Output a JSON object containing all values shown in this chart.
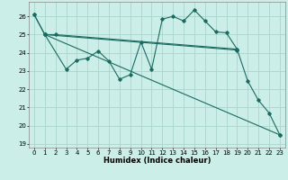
{
  "xlabel": "Humidex (Indice chaleur)",
  "bg_color": "#cceee8",
  "grid_color": "#aad4cc",
  "line_color": "#1a6b60",
  "xlim": [
    -0.5,
    23.5
  ],
  "ylim": [
    18.8,
    26.8
  ],
  "yticks": [
    19,
    20,
    21,
    22,
    23,
    24,
    25,
    26
  ],
  "xticks": [
    0,
    1,
    2,
    3,
    4,
    5,
    6,
    7,
    8,
    9,
    10,
    11,
    12,
    13,
    14,
    15,
    16,
    17,
    18,
    19,
    20,
    21,
    22,
    23
  ],
  "line1_x": [
    0,
    1,
    2,
    19
  ],
  "line1_y": [
    26.1,
    25.0,
    25.0,
    24.2
  ],
  "line2_x": [
    1,
    19
  ],
  "line2_y": [
    25.0,
    24.15
  ],
  "line3_x": [
    0,
    1,
    3,
    4,
    5,
    6,
    7,
    8,
    9,
    10,
    11,
    12,
    13,
    14,
    15,
    16,
    17,
    18,
    19,
    20,
    21,
    22,
    23
  ],
  "line3_y": [
    26.1,
    25.0,
    23.1,
    23.6,
    23.7,
    24.1,
    23.55,
    22.55,
    22.8,
    24.6,
    23.1,
    25.85,
    26.0,
    25.75,
    26.35,
    25.75,
    25.15,
    25.1,
    24.2,
    22.45,
    21.4,
    20.7,
    19.5
  ],
  "line4_x": [
    1,
    23
  ],
  "line4_y": [
    25.0,
    19.5
  ],
  "marker": "D",
  "marker_size": 1.8,
  "linewidth": 0.8,
  "tick_fontsize": 5.0,
  "xlabel_fontsize": 6.0
}
